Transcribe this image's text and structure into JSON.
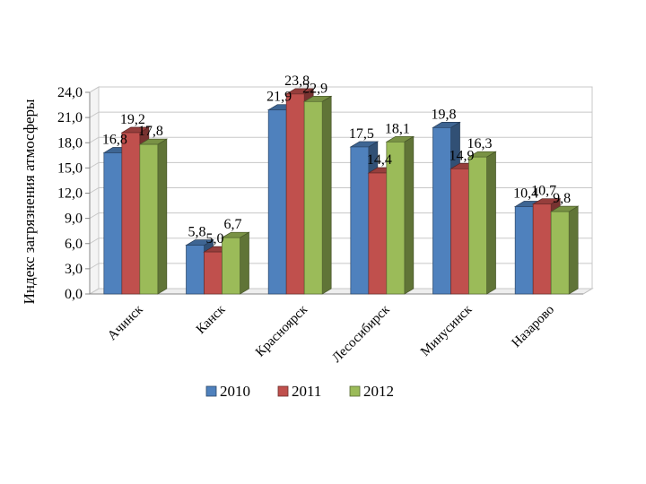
{
  "chart_data": {
    "type": "bar",
    "ylabel": "Индекс загрязнения атмосферы",
    "xlabel": "",
    "ylim": [
      0,
      24
    ],
    "yticks": [
      "0,0",
      "3,0",
      "6,0",
      "9,0",
      "12,0",
      "15,0",
      "18,0",
      "21,0",
      "24,0"
    ],
    "categories": [
      "Ачинск",
      "Канск",
      "Красноярск",
      "Лесосибирск",
      "Минусинск",
      "Назарово"
    ],
    "series": [
      {
        "name": "2010",
        "color": "#4F81BD",
        "values": [
          16.8,
          5.8,
          21.9,
          17.5,
          19.8,
          10.4
        ],
        "labels": [
          "16,8",
          "5,8",
          "21,9",
          "17,5",
          "19,8",
          "10,4"
        ]
      },
      {
        "name": "2011",
        "color": "#C0504D",
        "values": [
          19.2,
          5.0,
          23.8,
          14.4,
          14.9,
          10.7
        ],
        "labels": [
          "19,2",
          "5,0",
          "23,8",
          "14,4",
          "14,9",
          "10,7"
        ]
      },
      {
        "name": "2012",
        "color": "#9BBB59",
        "values": [
          17.8,
          6.7,
          22.9,
          18.1,
          16.3,
          9.8
        ],
        "labels": [
          "17,8",
          "6,7",
          "22,9",
          "18,1",
          "16,3",
          "9,8"
        ]
      }
    ],
    "grid": true,
    "legend": "bottom"
  }
}
